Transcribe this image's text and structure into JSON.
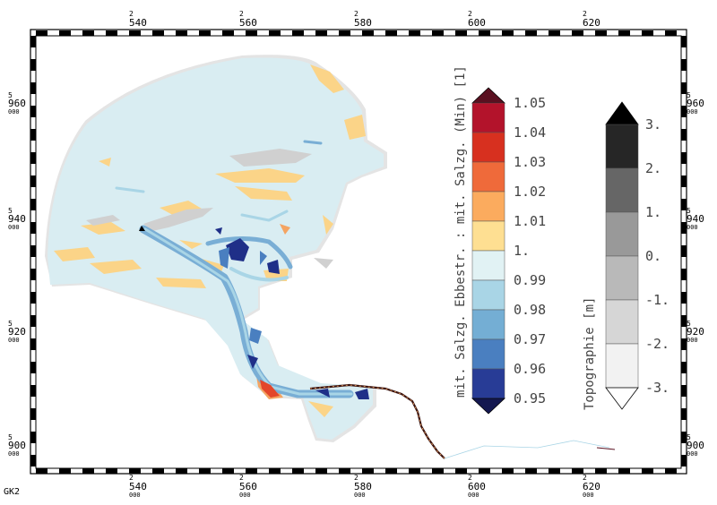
{
  "frame": {
    "x_ticks": [
      {
        "sup": "2",
        "main": "540",
        "sub": "000"
      },
      {
        "sup": "2",
        "main": "560",
        "sub": "000"
      },
      {
        "sup": "2",
        "main": "580",
        "sub": "000"
      },
      {
        "sup": "2",
        "main": "600",
        "sub": "000"
      },
      {
        "sup": "2",
        "main": "620",
        "sub": "000"
      }
    ],
    "y_ticks": [
      {
        "sup": "5",
        "main": "960",
        "sub": "000"
      },
      {
        "sup": "5",
        "main": "940",
        "sub": "000"
      },
      {
        "sup": "5",
        "main": "920",
        "sub": "000"
      },
      {
        "sup": "5",
        "main": "900",
        "sub": "000"
      }
    ],
    "crs_label": "GK2"
  },
  "salinity_legend": {
    "title": "mit. Salzg. Ebbestr. : mit. Salzg. (Min) [1]",
    "labels": [
      "1.05",
      "1.04",
      "1.03",
      "1.02",
      "1.01",
      "1.",
      "0.99",
      "0.98",
      "0.97",
      "0.96",
      "0.95"
    ],
    "colors": [
      "#b3132b",
      "#d7301f",
      "#ef6a3a",
      "#fbab5e",
      "#fedf92",
      "#e1f2f4",
      "#a9d5e6",
      "#74aed4",
      "#4a7fc0",
      "#283c96"
    ],
    "over_color": "#5a1020",
    "under_color": "#141850"
  },
  "topo_legend": {
    "title": "Topographie [m]",
    "labels": [
      "3.",
      "2.",
      "1.",
      "0.",
      "-1.",
      "-2.",
      "-3."
    ],
    "colors": [
      "#262626",
      "#666666",
      "#999999",
      "#b9b9b9",
      "#d6d6d6",
      "#f2f2f2"
    ],
    "over_color": "#000000",
    "under_color": "#ffffff"
  },
  "colors": {
    "water": "#d9edf2",
    "yellow_patch": "#fbd488",
    "orange_patch": "#f4a462",
    "deep_blue": "#1f2f88",
    "mid_blue": "#79aed5",
    "light_blue": "#a9d5e6",
    "red_hot": "#e3462a",
    "tidal_flat_gray": "#d8d8d8",
    "frame": "#000000"
  }
}
